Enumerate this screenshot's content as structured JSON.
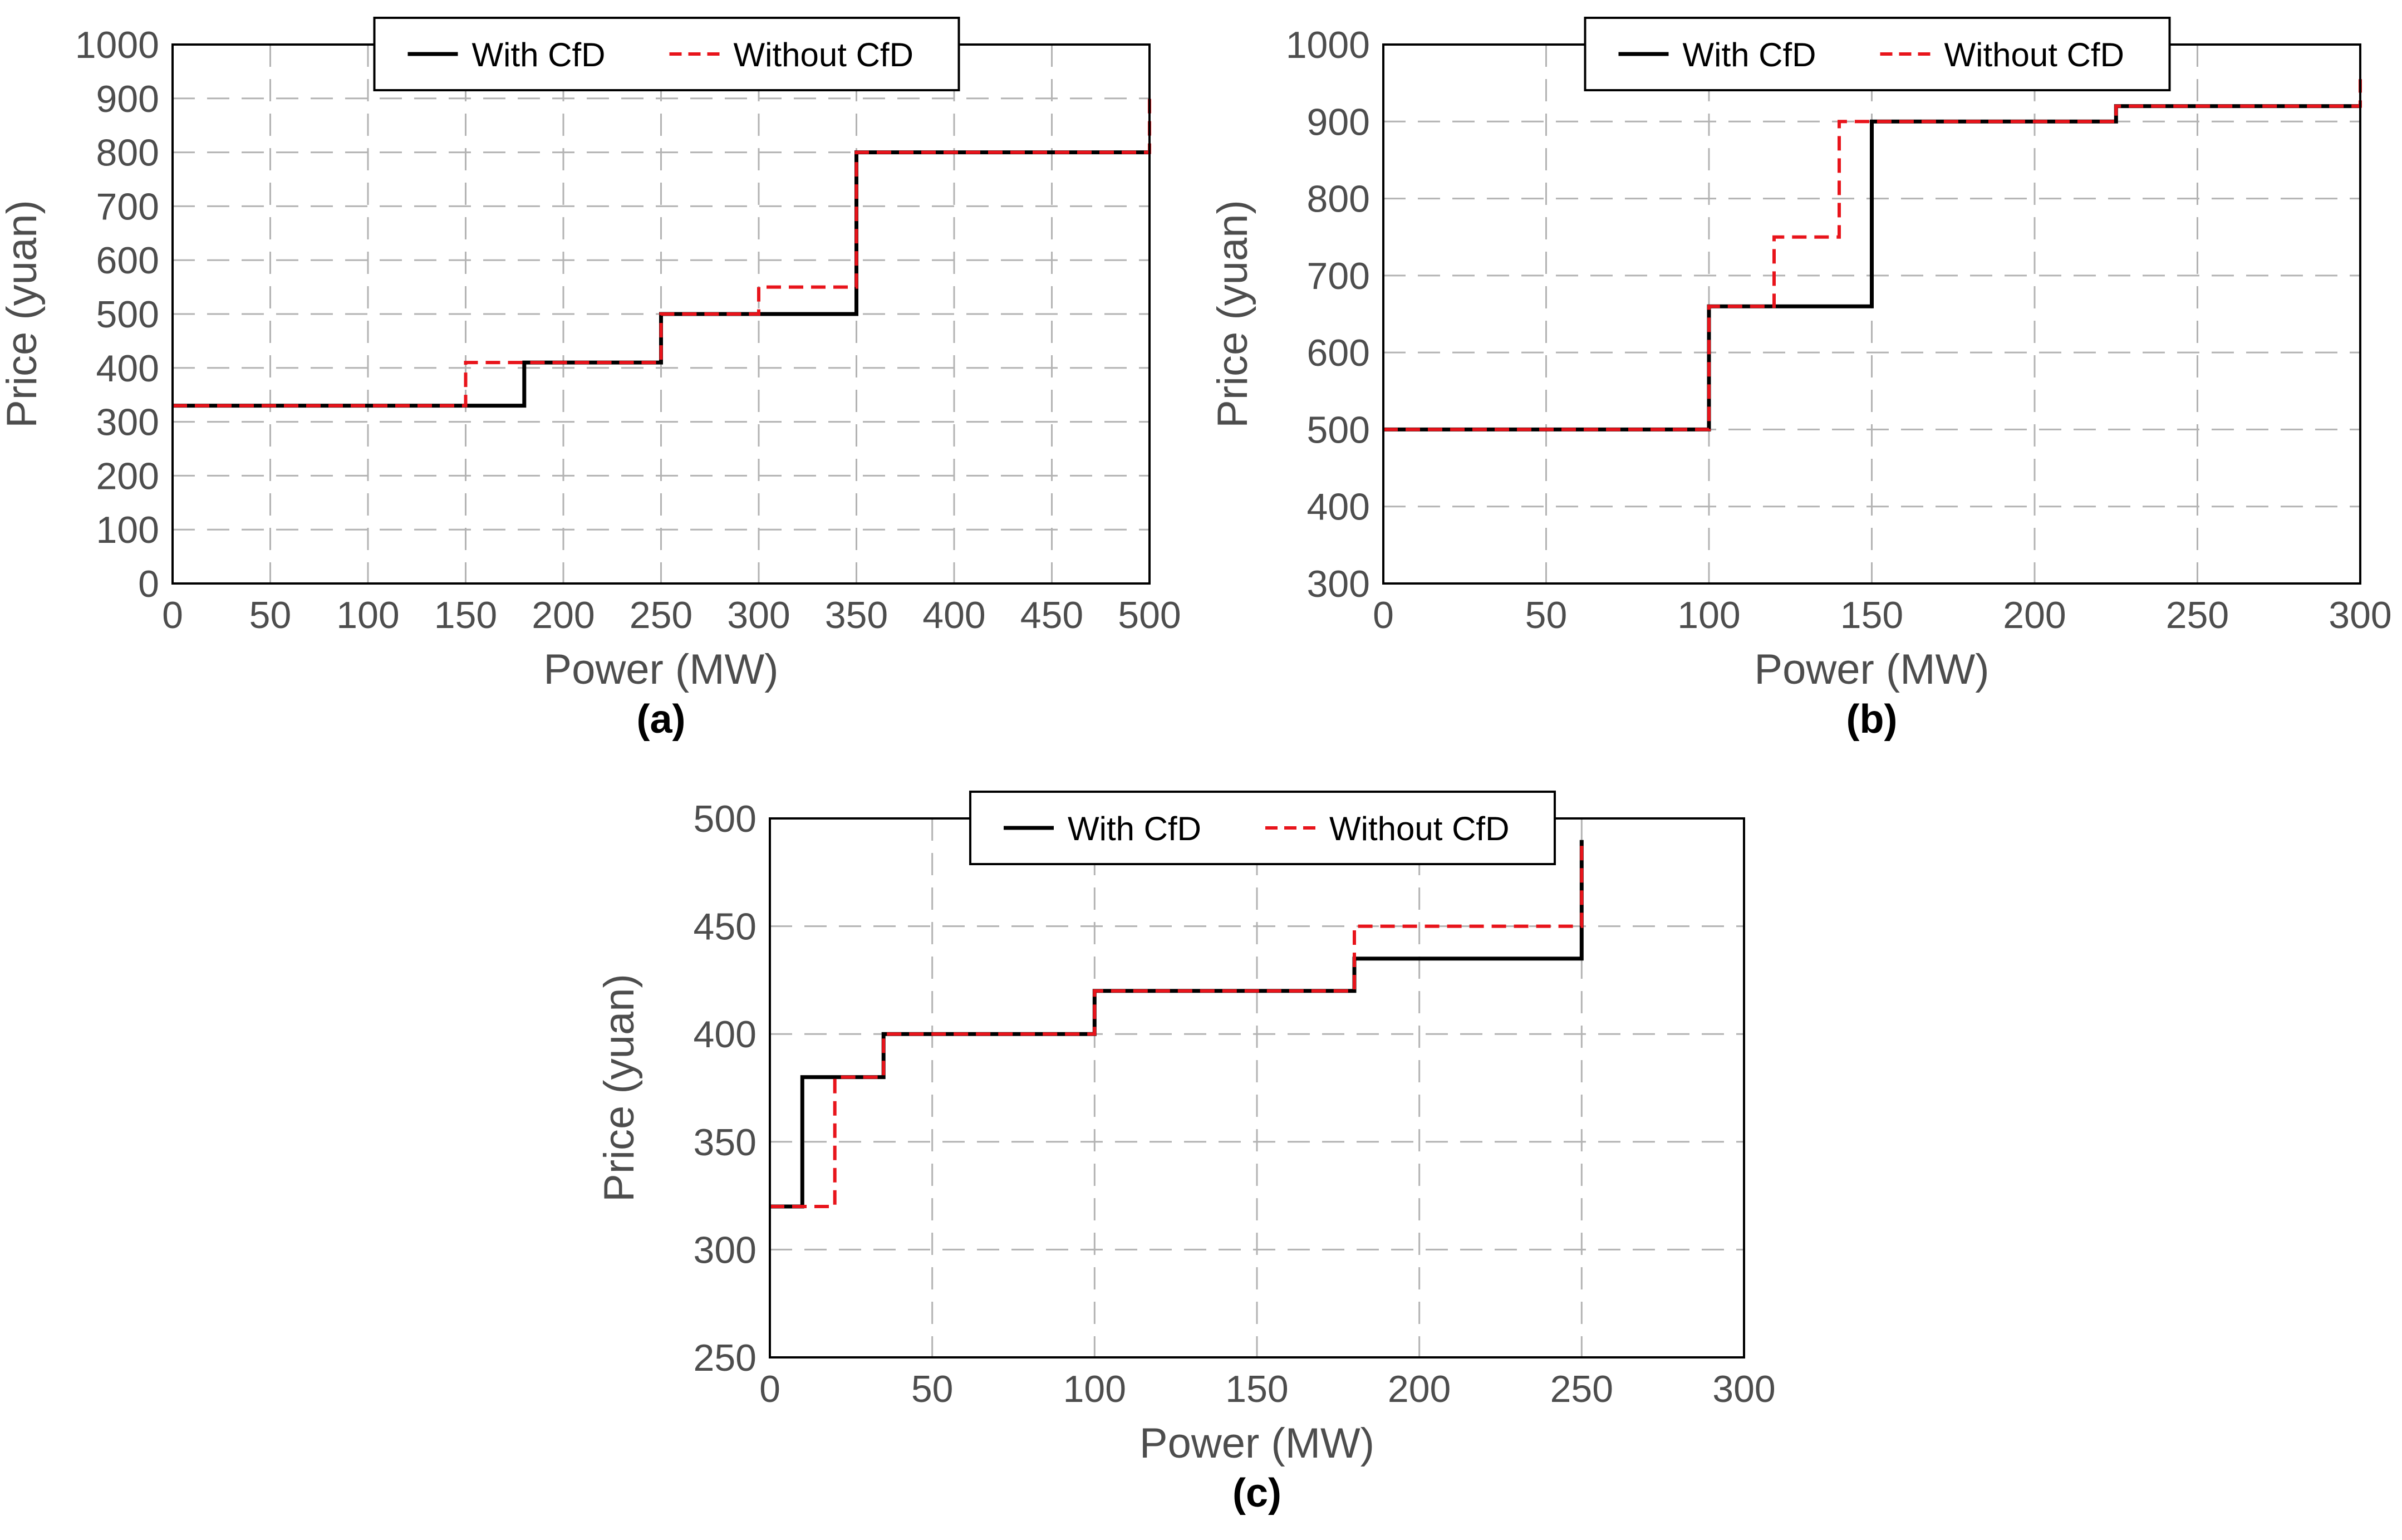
{
  "chart_data": [
    {
      "type": "line",
      "step": true,
      "panel_label": "(a)",
      "xlabel": "Power (MW)",
      "ylabel": "Price (yuan)",
      "xlim": [
        0,
        500
      ],
      "ylim": [
        0,
        1000
      ],
      "xticks": [
        0,
        50,
        100,
        150,
        200,
        250,
        300,
        350,
        400,
        450,
        500
      ],
      "yticks": [
        0,
        100,
        200,
        300,
        400,
        500,
        600,
        700,
        800,
        900,
        1000
      ],
      "grid": true,
      "legend_position": "top-center",
      "series": [
        {
          "name": "With CfD",
          "color": "#000000",
          "dash": "solid",
          "x": [
            0,
            180,
            180,
            250,
            250,
            350,
            350,
            500
          ],
          "y": [
            330,
            330,
            410,
            410,
            500,
            500,
            800,
            800
          ]
        },
        {
          "name": "Without CfD",
          "color": "#e8141b",
          "dash": "dashed",
          "x": [
            0,
            150,
            150,
            250,
            250,
            300,
            300,
            350,
            350,
            500,
            500
          ],
          "y": [
            330,
            330,
            410,
            410,
            500,
            500,
            550,
            550,
            800,
            800,
            900
          ]
        }
      ]
    },
    {
      "type": "line",
      "step": true,
      "panel_label": "(b)",
      "xlabel": "Power (MW)",
      "ylabel": "Price (yuan)",
      "xlim": [
        0,
        300
      ],
      "ylim": [
        300,
        1000
      ],
      "xticks": [
        0,
        50,
        100,
        150,
        200,
        250,
        300
      ],
      "yticks": [
        300,
        400,
        500,
        600,
        700,
        800,
        900,
        1000
      ],
      "grid": true,
      "legend_position": "top-center",
      "series": [
        {
          "name": "With CfD",
          "color": "#000000",
          "dash": "solid",
          "x": [
            0,
            100,
            100,
            150,
            150,
            225,
            225,
            300
          ],
          "y": [
            500,
            500,
            660,
            660,
            900,
            900,
            920,
            920
          ]
        },
        {
          "name": "Without CfD",
          "color": "#e8141b",
          "dash": "dashed",
          "x": [
            0,
            100,
            100,
            120,
            120,
            140,
            140,
            225,
            225,
            300,
            300
          ],
          "y": [
            500,
            500,
            660,
            660,
            750,
            750,
            900,
            900,
            920,
            920,
            955
          ]
        }
      ]
    },
    {
      "type": "line",
      "step": true,
      "panel_label": "(c)",
      "xlabel": "Power (MW)",
      "ylabel": "Price (yuan)",
      "xlim": [
        0,
        300
      ],
      "ylim": [
        250,
        500
      ],
      "xticks": [
        0,
        50,
        100,
        150,
        200,
        250,
        300
      ],
      "yticks": [
        250,
        300,
        350,
        400,
        450,
        500
      ],
      "grid": true,
      "legend_position": "top-center",
      "series": [
        {
          "name": "With CfD",
          "color": "#000000",
          "dash": "solid",
          "x": [
            0,
            10,
            10,
            35,
            35,
            100,
            100,
            180,
            180,
            250,
            250
          ],
          "y": [
            320,
            320,
            380,
            380,
            400,
            400,
            420,
            420,
            435,
            435,
            490
          ]
        },
        {
          "name": "Without CfD",
          "color": "#e8141b",
          "dash": "dashed",
          "x": [
            0,
            20,
            20,
            35,
            35,
            100,
            100,
            180,
            180,
            250,
            250
          ],
          "y": [
            320,
            320,
            380,
            380,
            400,
            400,
            420,
            420,
            450,
            450,
            490
          ]
        }
      ]
    }
  ]
}
